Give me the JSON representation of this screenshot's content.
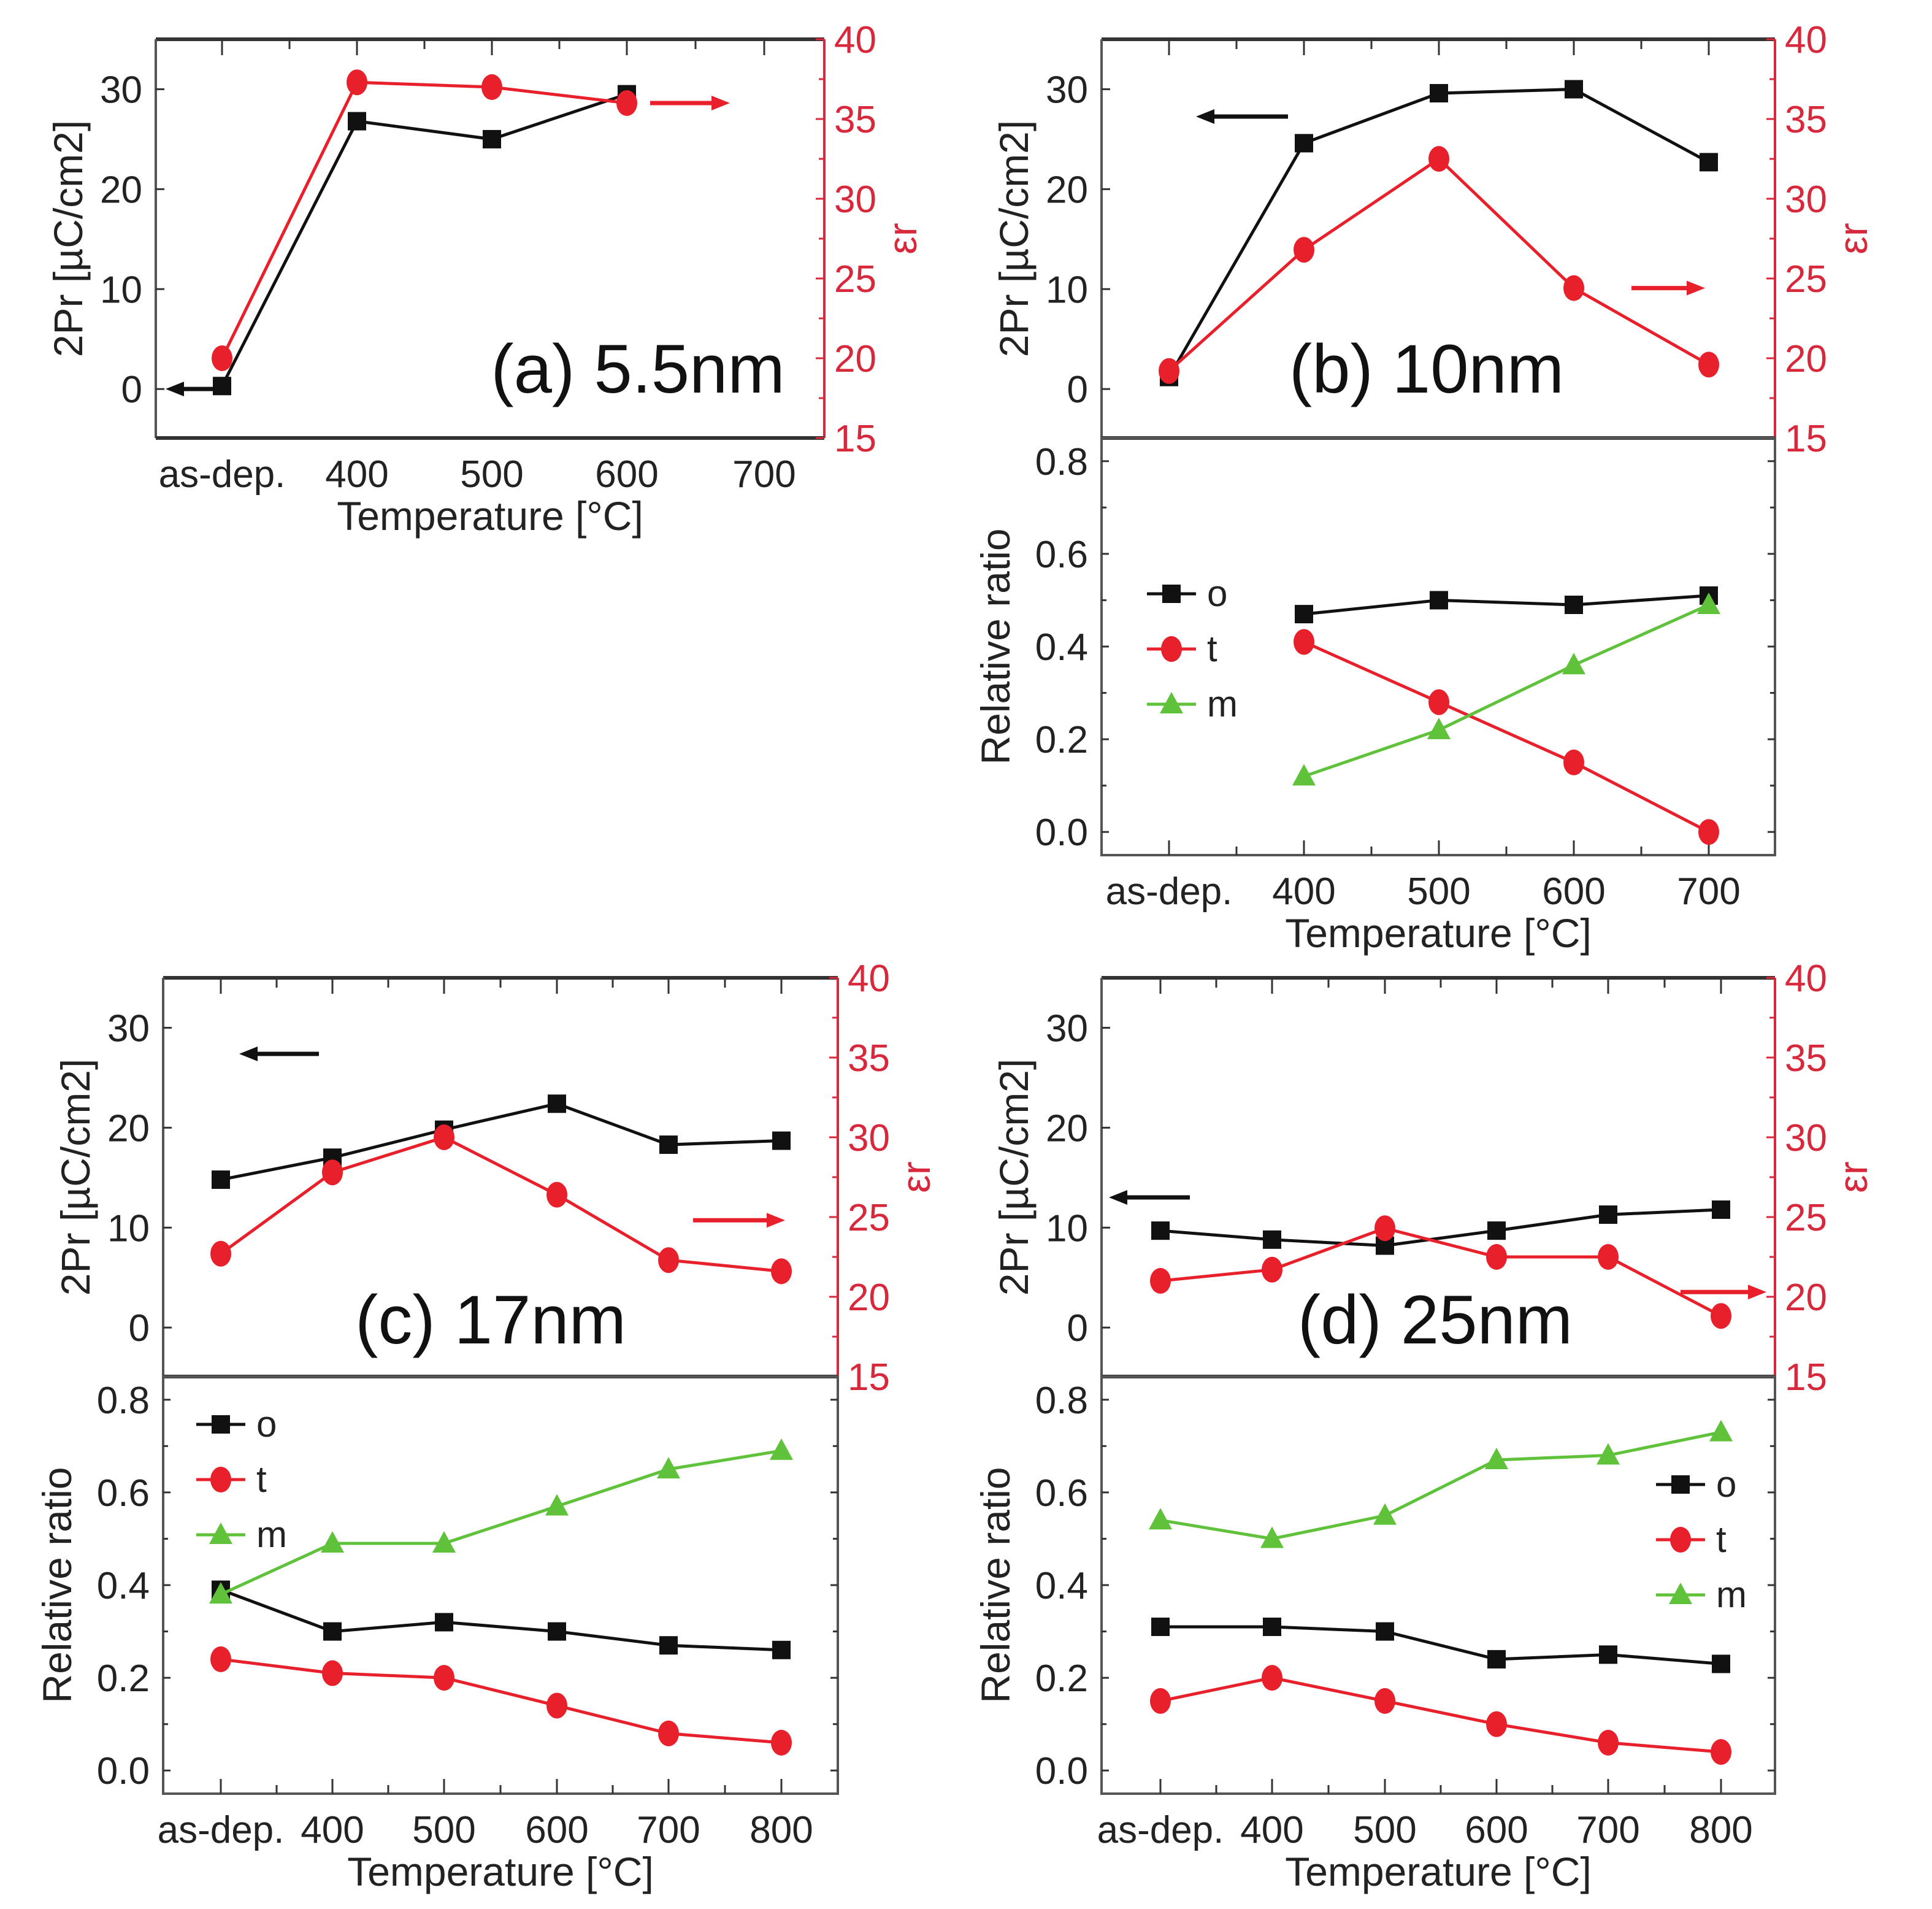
{
  "chart_data": [
    {
      "id": "a",
      "type": "line",
      "panel_label": "(a) 5.5nm",
      "xlabel": "Temperature [°C]",
      "categories": [
        "as-dep.",
        "400",
        "500",
        "600",
        "700"
      ],
      "top": {
        "ylabel_left": "2Pr [µC/cm2]",
        "ylabel_right": "εr",
        "ylim_left": [
          -4.9,
          35
        ],
        "yticks_left": [
          0,
          10,
          20,
          30
        ],
        "ylim_right": [
          15,
          40
        ],
        "yticks_right": [
          15,
          20,
          25,
          30,
          35,
          40
        ],
        "series": [
          {
            "name": "2Pr",
            "axis": "left",
            "color": "#111111",
            "marker": "square",
            "values": [
              0.3,
              26.8,
              25.0,
              29.5,
              null
            ]
          },
          {
            "name": "εr",
            "axis": "right",
            "color": "#e8202c",
            "marker": "circle",
            "values": [
              20.0,
              37.3,
              37.0,
              36.0,
              null
            ]
          }
        ],
        "annotations": [
          "left-arrow near 2Pr as-dep. point",
          "right-arrow near εr 600 point"
        ]
      }
    },
    {
      "id": "b",
      "type": "line",
      "panel_label": "(b) 10nm",
      "xlabel": "Temperature [°C]",
      "categories": [
        "as-dep.",
        "400",
        "500",
        "600",
        "700"
      ],
      "top": {
        "ylabel_left": "2Pr [µC/cm2]",
        "ylabel_right": "εr",
        "ylim_left": [
          -4.9,
          35
        ],
        "yticks_left": [
          0,
          10,
          20,
          30
        ],
        "ylim_right": [
          15,
          40
        ],
        "yticks_right": [
          15,
          20,
          25,
          30,
          35,
          40
        ],
        "series": [
          {
            "name": "2Pr",
            "axis": "left",
            "color": "#111111",
            "marker": "square",
            "values": [
              1.2,
              24.6,
              29.6,
              30.0,
              22.7
            ]
          },
          {
            "name": "εr",
            "axis": "right",
            "color": "#e8202c",
            "marker": "circle",
            "values": [
              19.2,
              26.8,
              32.5,
              24.4,
              19.6
            ]
          }
        ]
      },
      "bottom": {
        "ylabel": "Relative ratio",
        "ylim": [
          -0.05,
          0.85
        ],
        "yticks": [
          0.0,
          0.2,
          0.4,
          0.6,
          0.8
        ],
        "legend": [
          "o",
          "t",
          "m"
        ],
        "legend_position": "left",
        "series": [
          {
            "name": "o",
            "color": "#111111",
            "marker": "square",
            "values": [
              null,
              0.47,
              0.5,
              0.49,
              0.51
            ]
          },
          {
            "name": "t",
            "color": "#e8202c",
            "marker": "circle",
            "values": [
              null,
              0.41,
              0.28,
              0.15,
              0.0
            ]
          },
          {
            "name": "m",
            "color": "#5fc23a",
            "marker": "triangle",
            "values": [
              null,
              0.12,
              0.22,
              0.36,
              0.49
            ]
          }
        ]
      }
    },
    {
      "id": "c",
      "type": "line",
      "panel_label": "(c) 17nm",
      "xlabel": "Temperature [°C]",
      "categories": [
        "as-dep.",
        "400",
        "500",
        "600",
        "700",
        "800"
      ],
      "top": {
        "ylabel_left": "2Pr [µC/cm2]",
        "ylabel_right": "εr",
        "ylim_left": [
          -4.9,
          35
        ],
        "yticks_left": [
          0,
          10,
          20,
          30
        ],
        "ylim_right": [
          15,
          40
        ],
        "yticks_right": [
          15,
          20,
          25,
          30,
          35,
          40
        ],
        "series": [
          {
            "name": "2Pr",
            "axis": "left",
            "color": "#111111",
            "marker": "square",
            "values": [
              14.8,
              17.0,
              19.8,
              22.4,
              18.3,
              18.7
            ]
          },
          {
            "name": "εr",
            "axis": "right",
            "color": "#e8202c",
            "marker": "circle",
            "values": [
              22.7,
              27.8,
              30.0,
              26.4,
              22.3,
              21.6
            ]
          }
        ]
      },
      "bottom": {
        "ylabel": "Relative ratio",
        "ylim": [
          -0.05,
          0.85
        ],
        "yticks": [
          0.0,
          0.2,
          0.4,
          0.6,
          0.8
        ],
        "legend": [
          "o",
          "t",
          "m"
        ],
        "legend_position": "top-left",
        "series": [
          {
            "name": "o",
            "color": "#111111",
            "marker": "square",
            "values": [
              0.39,
              0.3,
              0.32,
              0.3,
              0.27,
              0.26
            ]
          },
          {
            "name": "t",
            "color": "#e8202c",
            "marker": "circle",
            "values": [
              0.24,
              0.21,
              0.2,
              0.14,
              0.08,
              0.06
            ]
          },
          {
            "name": "m",
            "color": "#5fc23a",
            "marker": "triangle",
            "values": [
              0.38,
              0.49,
              0.49,
              0.57,
              0.65,
              0.69
            ]
          }
        ]
      }
    },
    {
      "id": "d",
      "type": "line",
      "panel_label": "(d) 25nm",
      "xlabel": "Temperature [°C]",
      "categories": [
        "as-dep.",
        "400",
        "500",
        "600",
        "700",
        "800"
      ],
      "top": {
        "ylabel_left": "2Pr [µC/cm2]",
        "ylabel_right": "εr",
        "ylim_left": [
          -4.9,
          35
        ],
        "yticks_left": [
          0,
          10,
          20,
          30
        ],
        "ylim_right": [
          15,
          40
        ],
        "yticks_right": [
          15,
          20,
          25,
          30,
          35,
          40
        ],
        "series": [
          {
            "name": "2Pr",
            "axis": "left",
            "color": "#111111",
            "marker": "square",
            "values": [
              9.7,
              8.8,
              8.2,
              9.7,
              11.3,
              11.8
            ]
          },
          {
            "name": "εr",
            "axis": "right",
            "color": "#e8202c",
            "marker": "circle",
            "values": [
              21.0,
              21.7,
              24.3,
              22.5,
              22.5,
              18.8
            ]
          }
        ]
      },
      "bottom": {
        "ylabel": "Relative ratio",
        "ylim": [
          -0.05,
          0.85
        ],
        "yticks": [
          0.0,
          0.2,
          0.4,
          0.6,
          0.8
        ],
        "legend": [
          "o",
          "t",
          "m"
        ],
        "legend_position": "right",
        "series": [
          {
            "name": "o",
            "color": "#111111",
            "marker": "square",
            "values": [
              0.31,
              0.31,
              0.3,
              0.24,
              0.25,
              0.23
            ]
          },
          {
            "name": "t",
            "color": "#e8202c",
            "marker": "circle",
            "values": [
              0.15,
              0.2,
              0.15,
              0.1,
              0.06,
              0.04
            ]
          },
          {
            "name": "m",
            "color": "#5fc23a",
            "marker": "triangle",
            "values": [
              0.54,
              0.5,
              0.55,
              0.67,
              0.68,
              0.73
            ]
          }
        ]
      }
    }
  ]
}
